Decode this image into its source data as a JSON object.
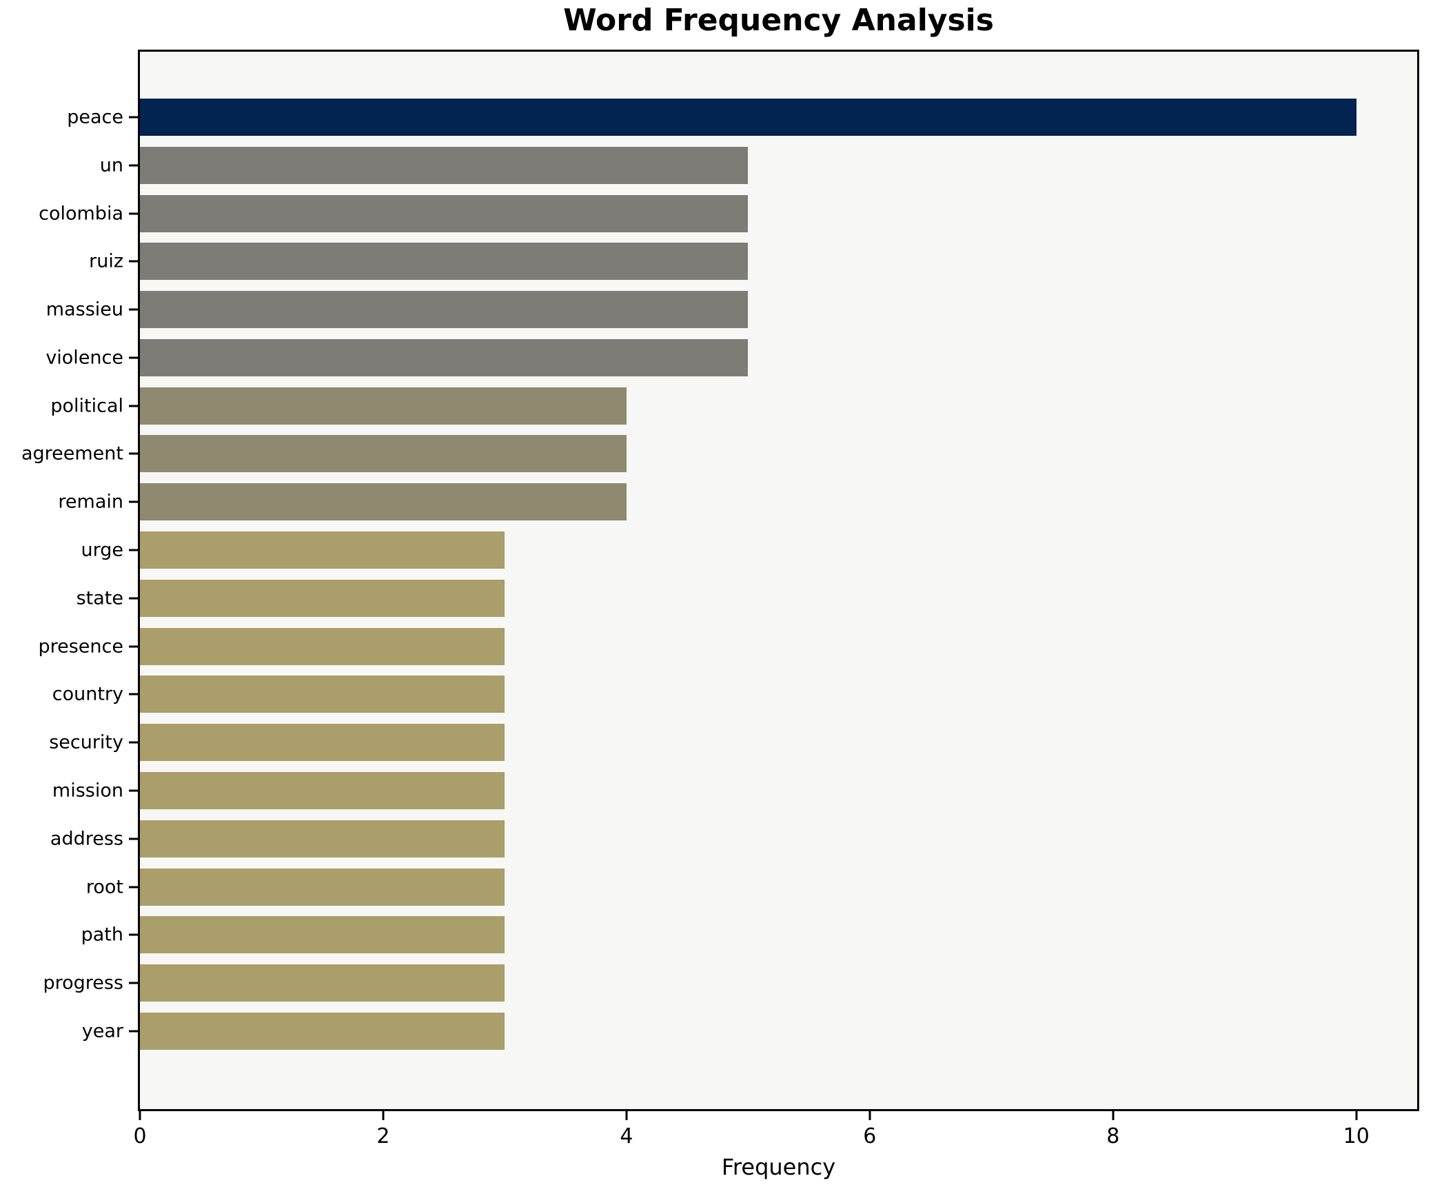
{
  "chart_data": {
    "type": "bar",
    "orientation": "horizontal",
    "title": "Word Frequency Analysis",
    "xlabel": "Frequency",
    "ylabel": "",
    "categories": [
      "peace",
      "un",
      "colombia",
      "ruiz",
      "massieu",
      "violence",
      "political",
      "agreement",
      "remain",
      "urge",
      "state",
      "presence",
      "country",
      "security",
      "mission",
      "address",
      "root",
      "path",
      "progress",
      "year"
    ],
    "values": [
      10,
      5,
      5,
      5,
      5,
      5,
      4,
      4,
      4,
      3,
      3,
      3,
      3,
      3,
      3,
      3,
      3,
      3,
      3,
      3
    ],
    "bar_colors": [
      "#032350",
      "#7d7c76",
      "#7d7c76",
      "#7d7c76",
      "#7d7c76",
      "#7d7c76",
      "#8f8970",
      "#8f8970",
      "#8f8970",
      "#aa9e6a",
      "#aa9e6a",
      "#aa9e6a",
      "#aa9e6a",
      "#aa9e6a",
      "#aa9e6a",
      "#aa9e6a",
      "#aa9e6a",
      "#aa9e6a",
      "#aa9e6a",
      "#aa9e6a"
    ],
    "x_ticks": [
      0,
      2,
      4,
      6,
      8,
      10
    ],
    "xlim": [
      0,
      10.5
    ],
    "grid": false,
    "legend": null,
    "plot_background": "#f7f7f5",
    "axis_color": "#000000",
    "title_color": "#000000"
  }
}
